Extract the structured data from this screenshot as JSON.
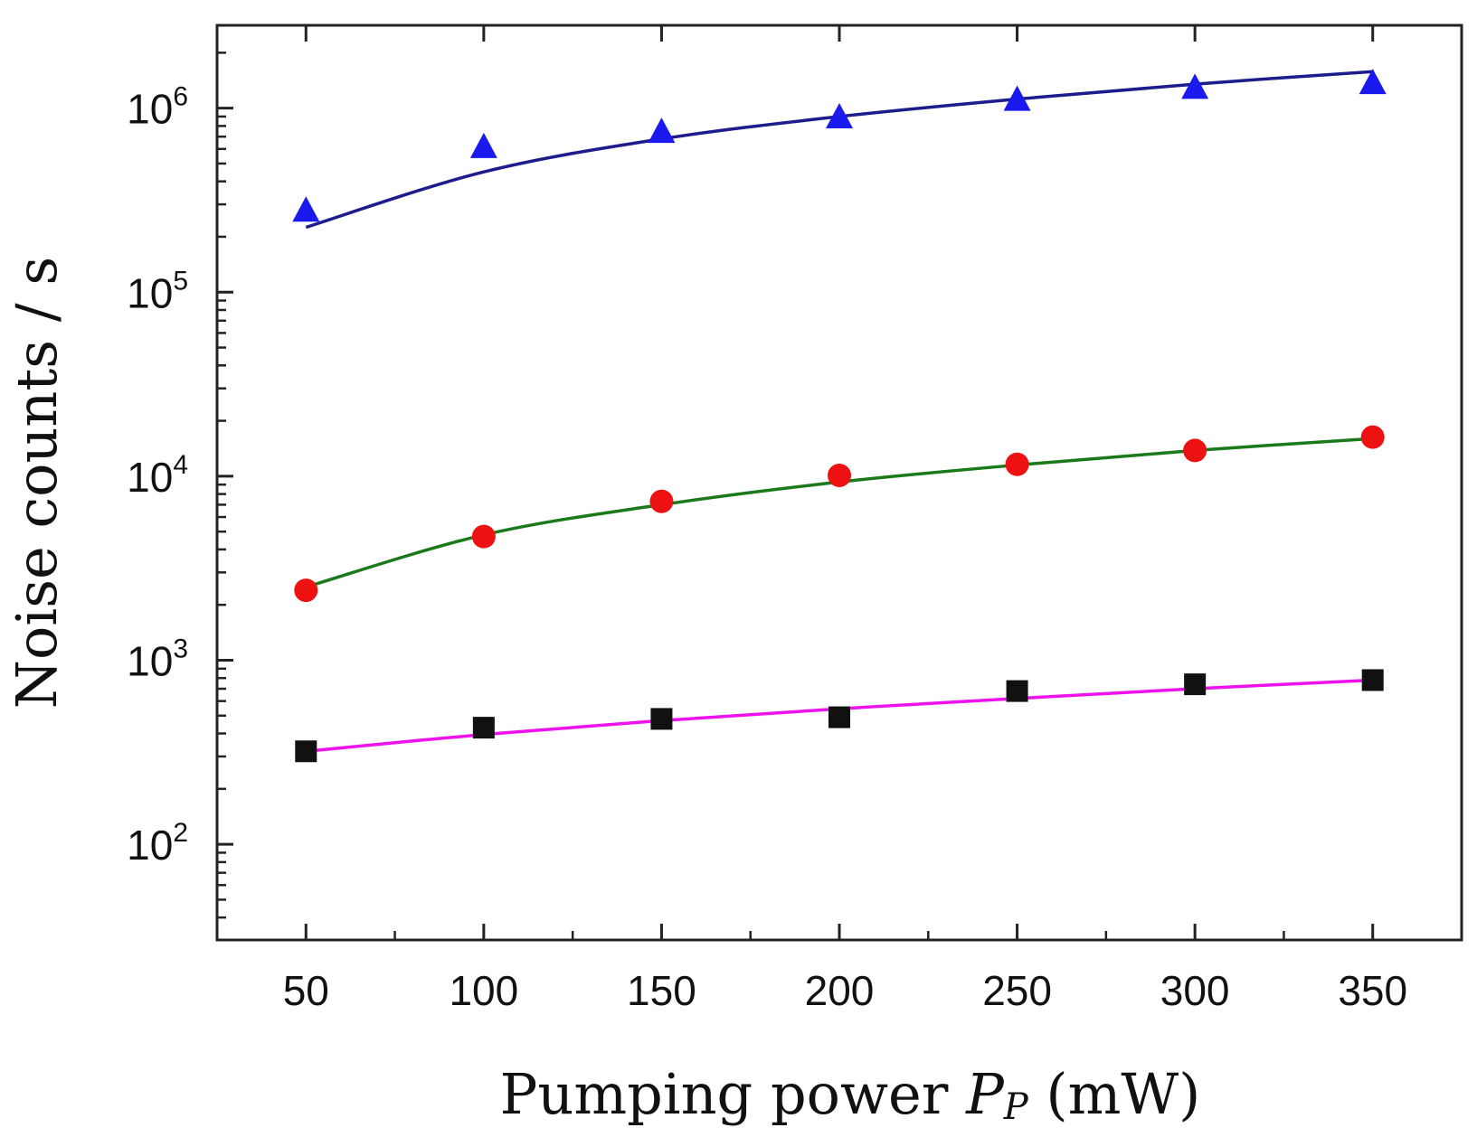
{
  "chart_data": {
    "type": "scatter",
    "title": "",
    "xlabel": {
      "prefix": "Pumping power ",
      "symbol": "P",
      "subscript": "P",
      "suffix": " (mW)"
    },
    "ylabel": "Noise counts / s",
    "yscale": "log",
    "xlim": [
      25,
      375
    ],
    "ylim_log10": [
      1.48,
      6.45
    ],
    "x_ticks": [
      50,
      100,
      150,
      200,
      250,
      300,
      350
    ],
    "x_tick_labels": [
      "50",
      "100",
      "150",
      "200",
      "250",
      "300",
      "350"
    ],
    "y_ticks": [
      {
        "value": 100,
        "base": "10",
        "exponent": "2"
      },
      {
        "value": 1000,
        "base": "10",
        "exponent": "3"
      },
      {
        "value": 10000,
        "base": "10",
        "exponent": "4"
      },
      {
        "value": 100000,
        "base": "10",
        "exponent": "5"
      },
      {
        "value": 1000000,
        "base": "10",
        "exponent": "6"
      }
    ],
    "grid": false,
    "x": [
      50,
      100,
      150,
      200,
      250,
      300,
      350
    ],
    "series": [
      {
        "name": "triangles",
        "marker": "triangle",
        "marker_color": "#1a1aee",
        "fit_color": "#1c1c8c",
        "values": [
          280000,
          620000,
          750000,
          900000,
          1120000,
          1300000,
          1380000
        ],
        "fit": [
          225000,
          450000,
          680000,
          900000,
          1120000,
          1350000,
          1580000
        ]
      },
      {
        "name": "circles",
        "marker": "circle",
        "marker_color": "#ee1111",
        "fit_color": "#1a7a1a",
        "values": [
          2400,
          4700,
          7300,
          10100,
          11600,
          13800,
          16300
        ],
        "fit": [
          2500,
          4800,
          7000,
          9300,
          11500,
          13800,
          16000
        ]
      },
      {
        "name": "squares",
        "marker": "square",
        "marker_color": "#111111",
        "fit_color": "#ee11ee",
        "values": [
          320,
          430,
          480,
          490,
          680,
          740,
          780
        ],
        "fit": [
          320,
          395,
          470,
          545,
          620,
          700,
          780
        ]
      }
    ]
  }
}
